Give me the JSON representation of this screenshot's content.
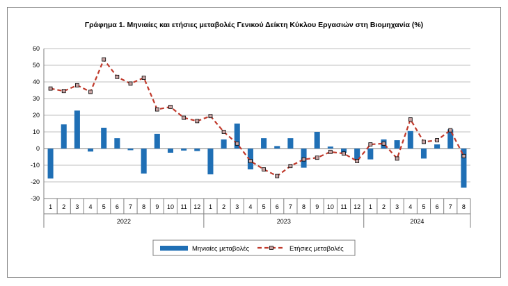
{
  "chart_data": {
    "type": "bar",
    "title": "Γράφημα 1.  Μηνιαίες και ετήσιες μεταβολές  Γενικού Δείκτη Κύκλου Εργασιών στη Βιομηχανία  (%)",
    "categories": [
      "1",
      "2",
      "3",
      "4",
      "5",
      "6",
      "7",
      "8",
      "9",
      "10",
      "11",
      "12",
      "1",
      "2",
      "3",
      "4",
      "5",
      "6",
      "7",
      "8",
      "9",
      "10",
      "11",
      "12",
      "1",
      "2",
      "3",
      "4",
      "5",
      "6",
      "7",
      "8"
    ],
    "year_groups": [
      {
        "label": "2022",
        "start": 0,
        "count": 12
      },
      {
        "label": "2023",
        "start": 12,
        "count": 12
      },
      {
        "label": "2024",
        "start": 24,
        "count": 8
      }
    ],
    "ylim": [
      -30,
      60
    ],
    "yticks": [
      -30,
      -20,
      -10,
      0,
      10,
      20,
      30,
      40,
      50,
      60
    ],
    "grid": true,
    "legend_position": "bottom",
    "series": [
      {
        "name": "Μηνιαίες μεταβολές",
        "kind": "bar",
        "color": "#1f6fb5",
        "values": [
          -18,
          14.5,
          22.8,
          -1.8,
          12.5,
          6.2,
          -1,
          -15,
          8.8,
          -2.5,
          -1.2,
          -1.5,
          -15.5,
          5.5,
          15,
          -12.5,
          6.2,
          1.5,
          6.2,
          -11.5,
          10,
          1.2,
          -2.5,
          -6.5,
          -6.5,
          5.5,
          5,
          10.5,
          -6,
          2.5,
          11.5,
          -23.5
        ]
      },
      {
        "name": "Ετήσιες μεταβολές",
        "kind": "line",
        "color": "#c0392b",
        "values": [
          36,
          34.5,
          38,
          34,
          53.5,
          43,
          39,
          42.5,
          23.5,
          25,
          18.5,
          16.5,
          19.5,
          10,
          3,
          -7.5,
          -12.5,
          -16.5,
          -10.5,
          -6.5,
          -5.5,
          -2,
          -3,
          -7.5,
          2.5,
          3,
          -6,
          17.5,
          4,
          5,
          11,
          -4.5
        ]
      }
    ]
  }
}
